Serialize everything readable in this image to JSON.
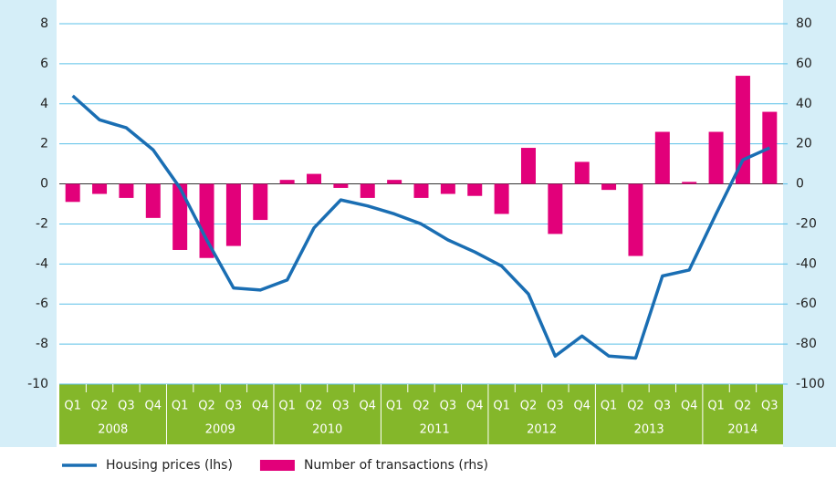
{
  "chart_data": {
    "type": "bar-line",
    "categories": [
      "Q1",
      "Q2",
      "Q3",
      "Q4",
      "Q1",
      "Q2",
      "Q3",
      "Q4",
      "Q1",
      "Q2",
      "Q3",
      "Q4",
      "Q1",
      "Q2",
      "Q3",
      "Q4",
      "Q1",
      "Q2",
      "Q3",
      "Q4",
      "Q1",
      "Q2",
      "Q3",
      "Q4",
      "Q1",
      "Q2",
      "Q3"
    ],
    "years": [
      "2008",
      "2009",
      "2010",
      "2011",
      "2012",
      "2013",
      "2014"
    ],
    "series": [
      {
        "name": "Housing prices (lhs)",
        "type": "line",
        "axis": "y",
        "color": "#1a6eb3",
        "values": [
          4.4,
          3.2,
          2.8,
          1.7,
          -0.2,
          -2.8,
          -5.2,
          -5.3,
          -4.8,
          -2.2,
          -0.8,
          -1.1,
          -1.5,
          -2.0,
          -2.8,
          -3.4,
          -4.1,
          -5.5,
          -8.6,
          -7.6,
          -8.6,
          -8.7,
          -4.6,
          -4.3,
          -1.5,
          1.2,
          1.8
        ]
      },
      {
        "name": "Number of transactions (rhs)",
        "type": "bar",
        "axis": "y2",
        "color": "#e2007a",
        "values": [
          -9,
          -5,
          -7,
          -17,
          -33,
          -37,
          -31,
          -18,
          2,
          5,
          -2,
          -7,
          2,
          -7,
          -5,
          -6,
          -15,
          18,
          -25,
          11,
          -3,
          -36,
          26,
          1,
          26,
          54,
          36
        ]
      }
    ],
    "ylim": [
      -10,
      8
    ],
    "yticks": [
      -10,
      -8,
      -6,
      -4,
      -2,
      0,
      2,
      4,
      6,
      8
    ],
    "y2lim": [
      -100,
      80
    ],
    "y2ticks": [
      -100,
      -80,
      -60,
      -40,
      -20,
      0,
      20,
      40,
      60,
      80
    ],
    "grid": true
  }
}
